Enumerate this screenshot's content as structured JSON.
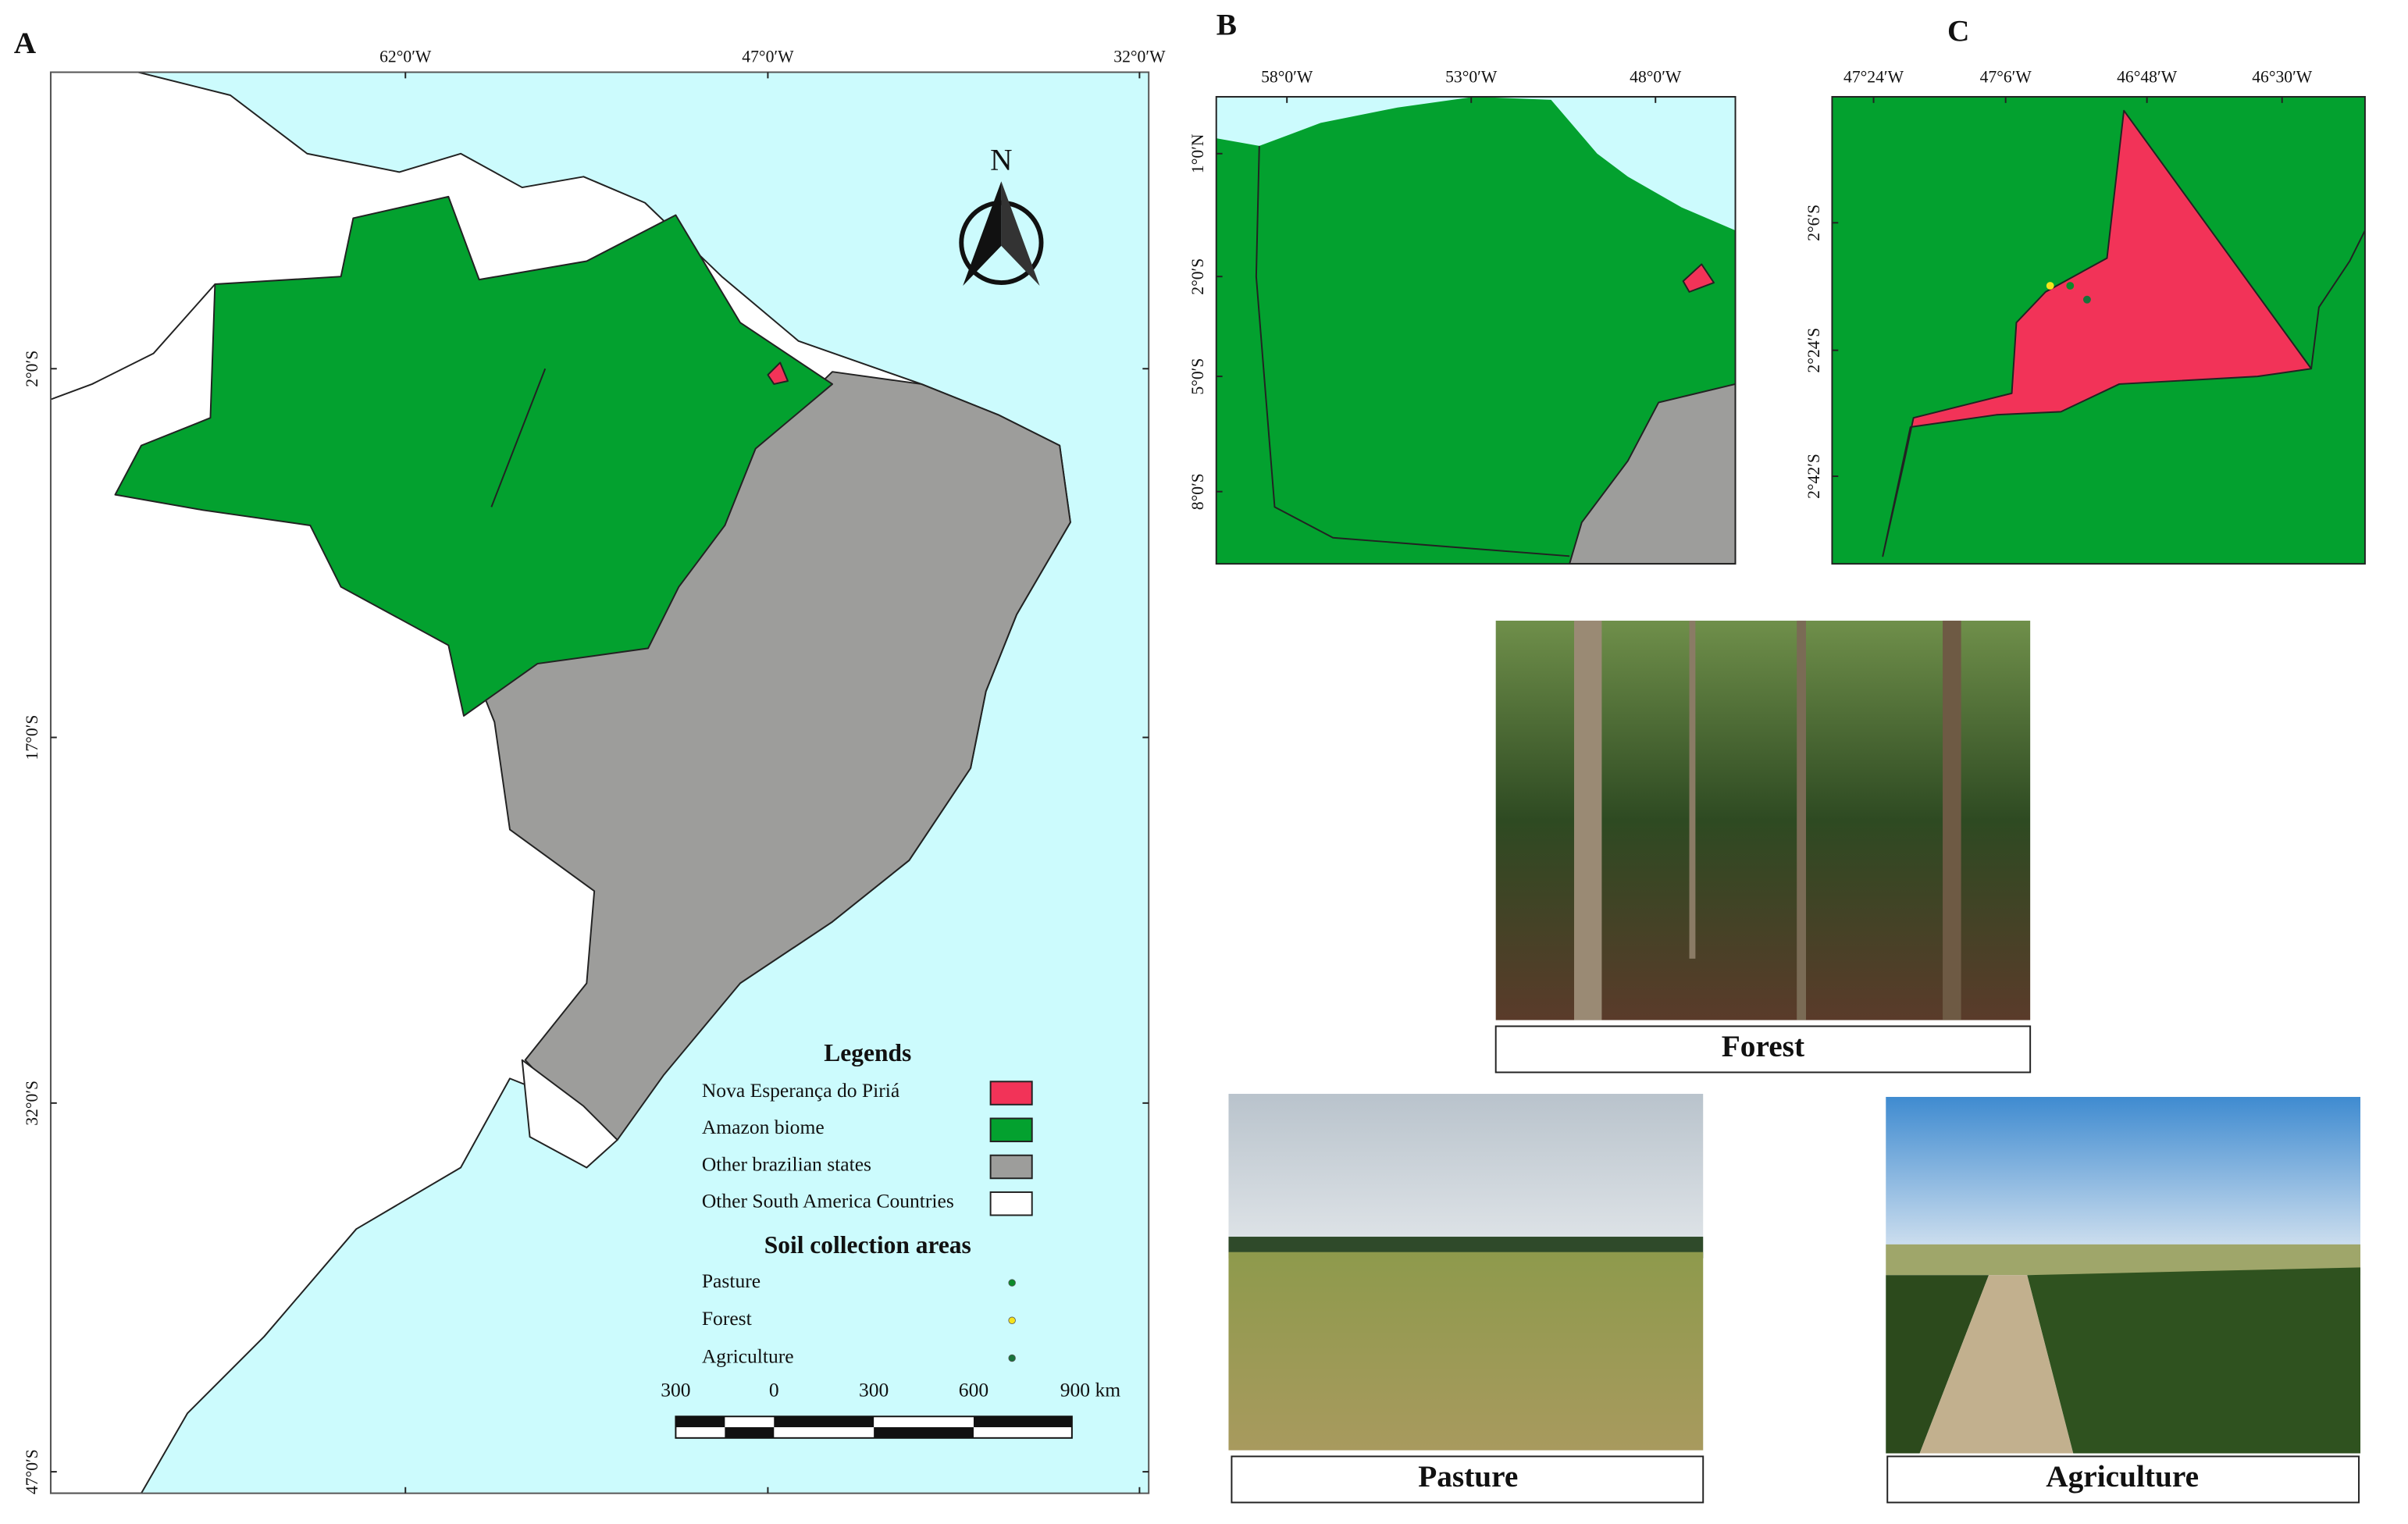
{
  "panel_a": {
    "label": "A",
    "lon_labels": [
      "62°0′W",
      "47°0′W",
      "32°0′W"
    ],
    "lat_labels": [
      "2°0′S",
      "17°0′S",
      "32°0′S",
      "47°0′S"
    ],
    "north": "N",
    "legend": {
      "title": "Legends",
      "items": [
        {
          "name": "Nova Esperança do Piriá",
          "color": "#f23358"
        },
        {
          "name": "Amazon biome",
          "color": "#03a12f"
        },
        {
          "name": "Other brazilian states",
          "color": "#9d9d9b"
        },
        {
          "name": "Other South America Countries",
          "color": "#ffffff"
        }
      ],
      "soil_title": "Soil collection areas",
      "soil_items": [
        {
          "name": "Pasture",
          "color": "#0a8a2a"
        },
        {
          "name": "Forest",
          "color": "#f5e31c"
        },
        {
          "name": "Agriculture",
          "color": "#17733a"
        }
      ]
    },
    "scale_labels": [
      "300",
      "0",
      "300",
      "600",
      "900 km"
    ]
  },
  "panel_b": {
    "label": "B",
    "lon_labels": [
      "58°0′W",
      "53°0′W",
      "48°0′W"
    ],
    "lat_labels": [
      "1°0′N",
      "2°0′S",
      "5°0′S",
      "8°0′S"
    ]
  },
  "panel_c": {
    "label": "C",
    "lon_labels": [
      "47°24′W",
      "47°6′W",
      "46°48′W",
      "46°30′W"
    ],
    "lat_labels": [
      "2°6′S",
      "2°24′S",
      "2°42′S"
    ]
  },
  "photos": [
    {
      "caption": "Forest"
    },
    {
      "caption": "Pasture"
    },
    {
      "caption": "Agriculture"
    }
  ]
}
